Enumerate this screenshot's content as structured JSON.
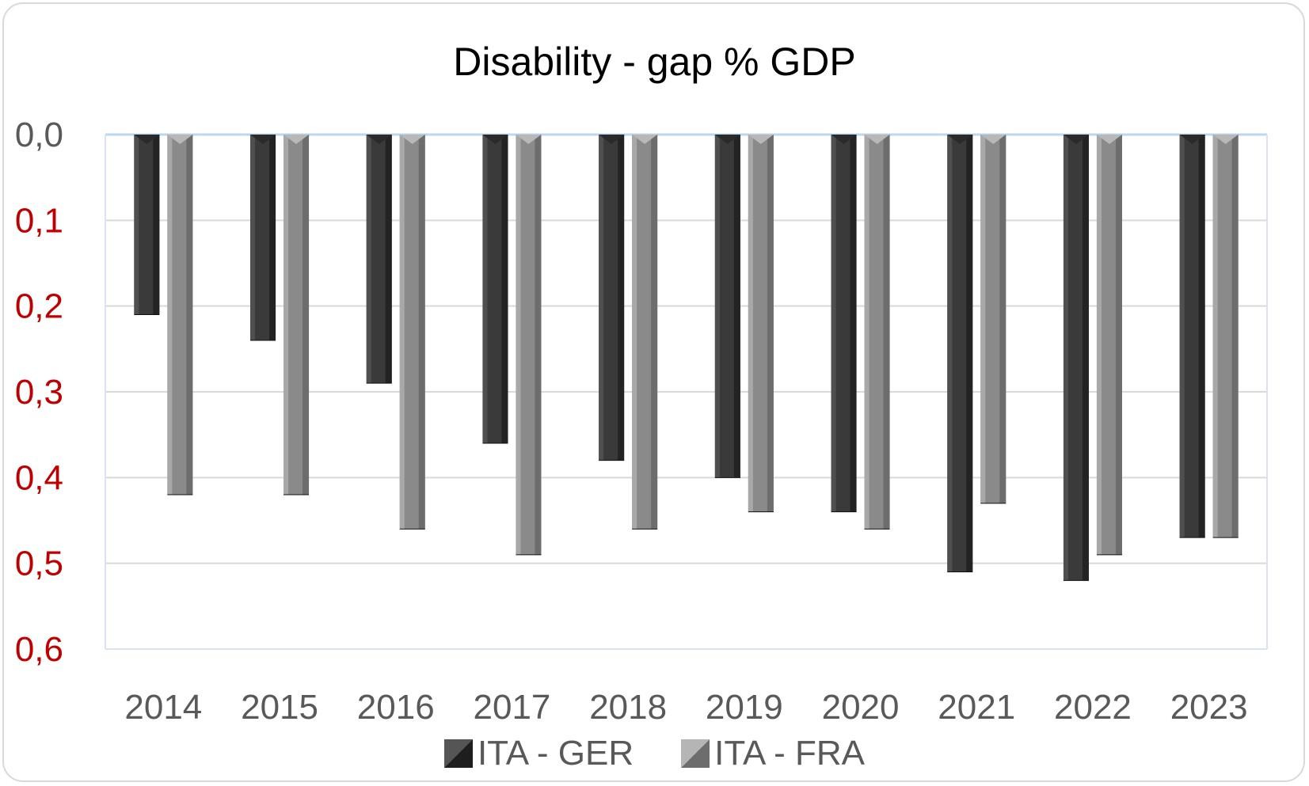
{
  "chart_data": {
    "type": "bar",
    "title": "Disability - gap % GDP",
    "categories": [
      "2014",
      "2015",
      "2016",
      "2017",
      "2018",
      "2019",
      "2020",
      "2021",
      "2022",
      "2023"
    ],
    "series": [
      {
        "name": "ITA - GER",
        "color": "#3a3a3a",
        "values": [
          0.21,
          0.24,
          0.29,
          0.36,
          0.38,
          0.4,
          0.44,
          0.51,
          0.52,
          0.47
        ]
      },
      {
        "name": "ITA - FRA",
        "color": "#8a8a8a",
        "values": [
          0.42,
          0.42,
          0.46,
          0.49,
          0.46,
          0.44,
          0.46,
          0.43,
          0.49,
          0.47
        ]
      }
    ],
    "y_axis": {
      "range": [
        0.0,
        0.6
      ],
      "inverted": true,
      "ticks": [
        "0,0",
        "0,1",
        "0,2",
        "0,3",
        "0,4",
        "0,5",
        "0,6"
      ],
      "zero_tick_color": "#595959",
      "tick_color": "#c00000"
    },
    "grid": true,
    "legend_position": "bottom"
  }
}
